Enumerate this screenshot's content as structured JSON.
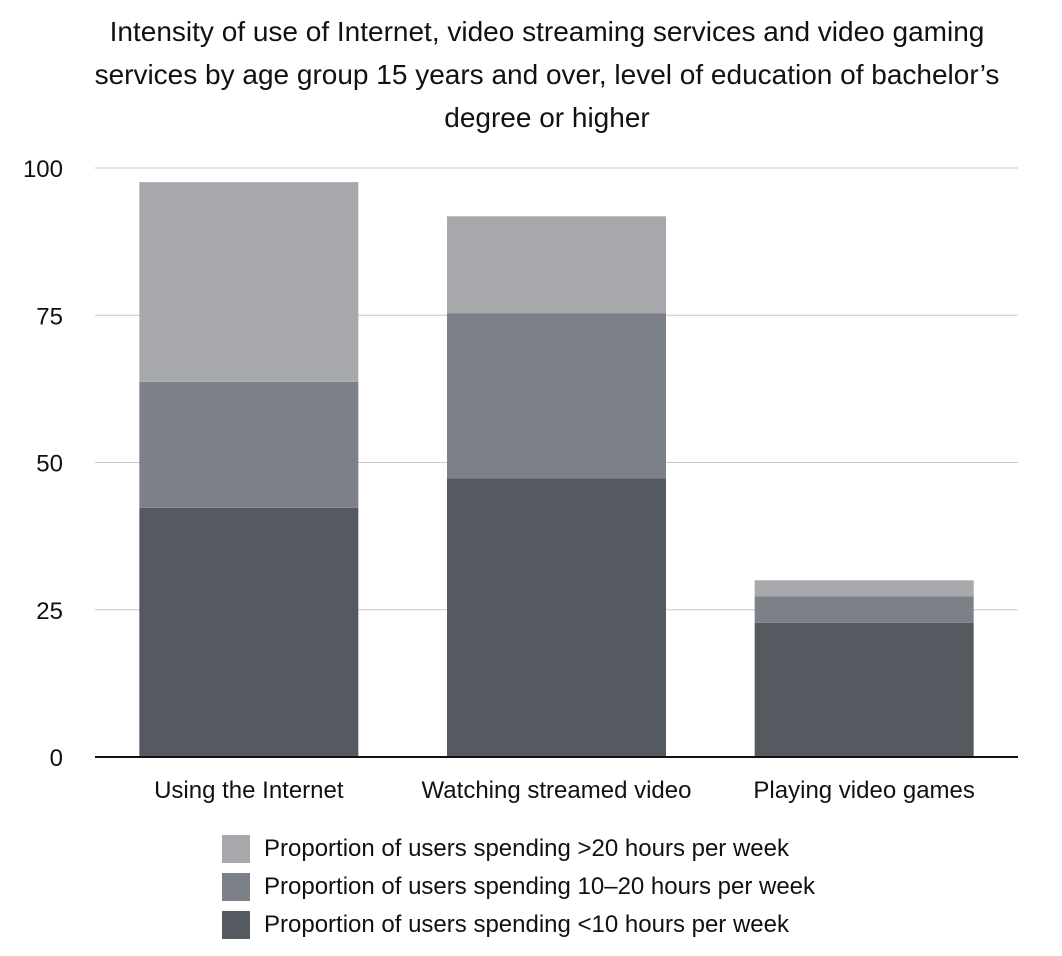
{
  "chart_data": {
    "type": "bar",
    "stacked": true,
    "title": "Intensity of use of Internet, video streaming services and video gaming services by age group 15 years and over, level of education of bachelor’s degree or higher",
    "xlabel": "",
    "ylabel": "",
    "ylim": [
      0,
      100
    ],
    "yticks": [
      0,
      25,
      50,
      75,
      100
    ],
    "grid": true,
    "legend_position": "bottom",
    "categories": [
      "Using the Internet",
      "Watching streamed video",
      "Playing video games"
    ],
    "series": [
      {
        "name": "Proportion of users spending <10 hours per week",
        "color": "#555a61",
        "values": [
          42.3,
          47.3,
          22.8
        ]
      },
      {
        "name": "Proportion of users spending 10–20 hours per week",
        "color": "#7c8088",
        "values": [
          21.4,
          28.0,
          4.5
        ]
      },
      {
        "name": "Proportion of users spending >20 hours per week",
        "color": "#a6a8ab",
        "values": [
          33.9,
          16.5,
          2.7
        ]
      }
    ],
    "legend_order": [
      2,
      1,
      0
    ]
  }
}
